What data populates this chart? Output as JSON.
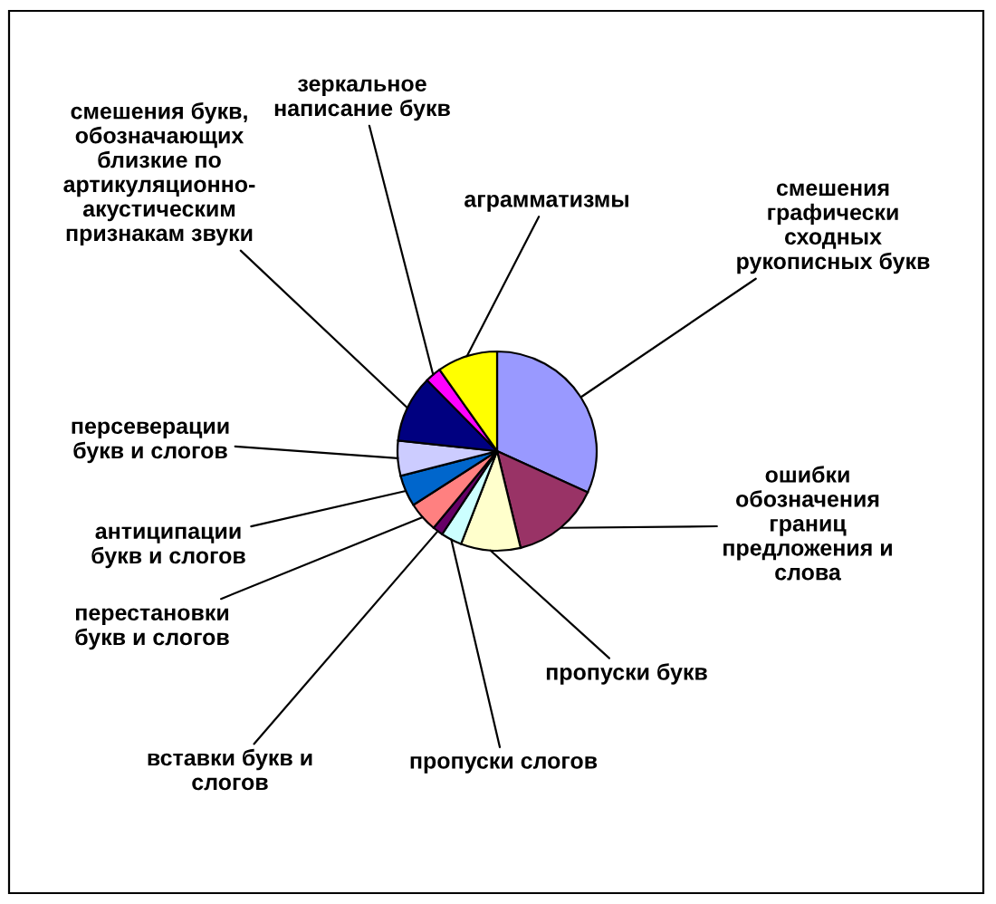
{
  "chart_data": {
    "type": "pie",
    "categories": [
      "смешения\nграфически\nсходных\nрукописных букв",
      "ошибки\nобозначения\nграниц\nпредложения и\nслова",
      "пропуски букв",
      "пропуски слогов",
      "вставки букв и\nслогов",
      "перестановки\nбукв и слогов",
      "антиципации\nбукв и слогов",
      "персеверации\nбукв и слогов",
      "смешения букв,\nобозначающих\nблизкие по\nартикуляционно-\nакустическим\nпризнакам звуки",
      "зеркальное\nнаписание букв",
      "аграмматизмы"
    ],
    "values": [
      31.8,
      14.4,
      9.7,
      3.4,
      1.7,
      4.9,
      5.1,
      5.7,
      10.9,
      2.6,
      9.8
    ],
    "colors": [
      "#9999ff",
      "#993366",
      "#ffffcc",
      "#ccffff",
      "#660066",
      "#ff8080",
      "#0066cc",
      "#ccccff",
      "#000080",
      "#ff00ff",
      "#ffff00"
    ]
  }
}
